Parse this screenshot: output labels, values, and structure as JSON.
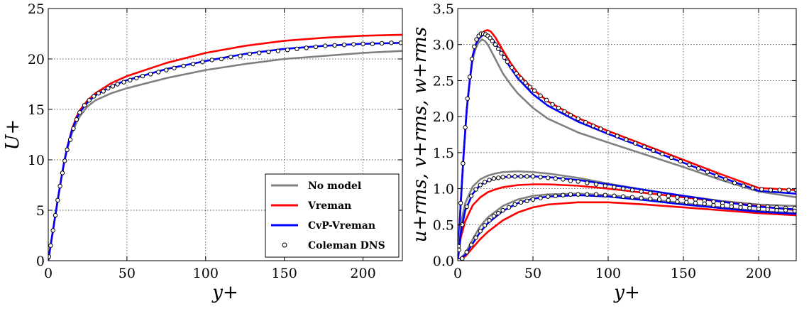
{
  "chart_data": [
    {
      "type": "line",
      "xlabel": "y+",
      "ylabel": "U+",
      "xlim": [
        0,
        225
      ],
      "ylim": [
        0,
        25
      ],
      "xticks": [
        "0",
        "50",
        "100",
        "150",
        "200"
      ],
      "yticks": [
        "0",
        "5",
        "10",
        "15",
        "20",
        "25"
      ],
      "grid": true,
      "legend_position": "lower-right",
      "series": [
        {
          "name": "No model",
          "color": "#808080",
          "style": "line",
          "x": [
            0,
            2,
            4,
            6,
            8,
            10,
            12,
            15,
            18,
            20,
            25,
            30,
            40,
            50,
            75,
            100,
            125,
            150,
            175,
            200,
            225
          ],
          "y": [
            0,
            2,
            4,
            6,
            7.9,
            9.6,
            11,
            12.6,
            13.7,
            14.3,
            15.3,
            15.9,
            16.6,
            17.1,
            18.1,
            18.9,
            19.5,
            20.0,
            20.3,
            20.6,
            20.8
          ]
        },
        {
          "name": "Vreman",
          "color": "#ff0000",
          "style": "line",
          "x": [
            0,
            2,
            4,
            6,
            8,
            10,
            12,
            15,
            18,
            20,
            25,
            30,
            40,
            50,
            75,
            100,
            125,
            150,
            175,
            200,
            225
          ],
          "y": [
            0,
            2,
            4,
            6,
            7.9,
            9.7,
            11.2,
            13.0,
            14.3,
            14.9,
            15.9,
            16.6,
            17.6,
            18.3,
            19.6,
            20.6,
            21.3,
            21.8,
            22.1,
            22.3,
            22.4
          ]
        },
        {
          "name": "CvP-Vreman",
          "color": "#0000ff",
          "style": "line",
          "x": [
            0,
            2,
            4,
            6,
            8,
            10,
            12,
            15,
            18,
            20,
            25,
            30,
            40,
            50,
            75,
            100,
            125,
            150,
            175,
            200,
            225
          ],
          "y": [
            0,
            2,
            4,
            6,
            7.9,
            9.7,
            11.2,
            12.9,
            14.1,
            14.7,
            15.7,
            16.4,
            17.3,
            17.9,
            19.0,
            19.8,
            20.5,
            21.0,
            21.3,
            21.5,
            21.6
          ]
        },
        {
          "name": "Coleman DNS",
          "color": "#000000",
          "style": "markers",
          "x": [
            0.4,
            1.5,
            3,
            4.5,
            6,
            7.5,
            9,
            10.5,
            12,
            14,
            16,
            18,
            20,
            23,
            26,
            29,
            32,
            35,
            38,
            41,
            44,
            48,
            52,
            56,
            60,
            65,
            70,
            75,
            80,
            86,
            92,
            98,
            104,
            110,
            116,
            122,
            128,
            134,
            140,
            146,
            152,
            158,
            164,
            170,
            176,
            182,
            188,
            194,
            200,
            206,
            212,
            218,
            224
          ],
          "y": [
            0.4,
            1.5,
            3,
            4.5,
            6,
            7.4,
            8.7,
            9.9,
            11.0,
            12.0,
            13.1,
            14.0,
            14.7,
            15.4,
            15.9,
            16.3,
            16.6,
            16.8,
            17.1,
            17.3,
            17.5,
            17.7,
            17.9,
            18.1,
            18.3,
            18.5,
            18.7,
            18.9,
            19.1,
            19.3,
            19.5,
            19.7,
            19.9,
            20.0,
            20.2,
            20.3,
            20.5,
            20.6,
            20.7,
            20.8,
            20.9,
            21.0,
            21.1,
            21.2,
            21.3,
            21.35,
            21.4,
            21.45,
            21.5,
            21.5,
            21.55,
            21.6,
            21.6
          ]
        }
      ]
    },
    {
      "type": "line",
      "xlabel": "y+",
      "ylabel": "u+rms, v+rms, w+rms",
      "xlim": [
        0,
        225
      ],
      "ylim": [
        0,
        3.5
      ],
      "xticks": [
        "0",
        "50",
        "100",
        "150",
        "200"
      ],
      "yticks": [
        "0.0",
        "0.5",
        "1.0",
        "1.5",
        "2.0",
        "2.5",
        "3.0",
        "3.5"
      ],
      "grid": true,
      "series": [
        {
          "group": "No model",
          "component": "u",
          "color": "#808080",
          "style": "line",
          "x": [
            0,
            2,
            4,
            6,
            8,
            10,
            12,
            14,
            16,
            18,
            20,
            22,
            25,
            30,
            35,
            40,
            50,
            60,
            80,
            100,
            125,
            150,
            175,
            200,
            225
          ],
          "y": [
            0,
            0.8,
            1.5,
            2.1,
            2.5,
            2.8,
            2.95,
            3.03,
            3.07,
            3.05,
            3.0,
            2.92,
            2.8,
            2.6,
            2.45,
            2.32,
            2.12,
            1.97,
            1.78,
            1.64,
            1.47,
            1.3,
            1.12,
            0.96,
            0.88
          ]
        },
        {
          "group": "Vreman",
          "component": "u",
          "color": "#ff0000",
          "style": "line",
          "x": [
            0,
            2,
            4,
            6,
            8,
            10,
            12,
            14,
            16,
            18,
            20,
            22,
            25,
            30,
            35,
            40,
            50,
            60,
            80,
            100,
            125,
            150,
            175,
            200,
            225
          ],
          "y": [
            0,
            0.8,
            1.5,
            2.1,
            2.5,
            2.85,
            3.0,
            3.1,
            3.15,
            3.19,
            3.2,
            3.18,
            3.1,
            2.92,
            2.75,
            2.6,
            2.38,
            2.21,
            1.98,
            1.8,
            1.6,
            1.4,
            1.2,
            1.01,
            0.98
          ]
        },
        {
          "group": "CvP-Vreman",
          "component": "u",
          "color": "#0000ff",
          "style": "line",
          "x": [
            0,
            2,
            4,
            6,
            8,
            10,
            12,
            14,
            16,
            18,
            20,
            22,
            25,
            30,
            35,
            40,
            50,
            60,
            80,
            100,
            125,
            150,
            175,
            200,
            225
          ],
          "y": [
            0,
            0.8,
            1.5,
            2.1,
            2.5,
            2.85,
            3.0,
            3.08,
            3.12,
            3.14,
            3.14,
            3.1,
            3.02,
            2.85,
            2.68,
            2.53,
            2.31,
            2.15,
            1.93,
            1.76,
            1.56,
            1.36,
            1.16,
            0.97,
            0.93
          ]
        },
        {
          "group": "Coleman DNS",
          "component": "u",
          "color": "#000000",
          "style": "markers",
          "x": [
            0.5,
            2,
            3.5,
            5,
            6.5,
            8,
            9.5,
            11,
            12.5,
            14,
            15.5,
            17,
            18.5,
            20,
            21.5,
            23,
            25,
            27,
            29,
            31,
            33,
            36,
            39,
            42,
            45,
            48,
            51,
            55,
            59,
            63,
            67,
            71,
            75,
            80,
            85,
            90,
            95,
            100,
            106,
            112,
            118,
            124,
            130,
            136,
            142,
            148,
            154,
            160,
            166,
            172,
            178,
            184,
            190,
            196,
            202,
            208,
            214,
            220,
            225
          ],
          "y": [
            0.2,
            0.8,
            1.35,
            1.85,
            2.25,
            2.55,
            2.8,
            2.97,
            3.07,
            3.12,
            3.15,
            3.15,
            3.14,
            3.12,
            3.09,
            3.05,
            3.0,
            2.94,
            2.88,
            2.82,
            2.76,
            2.68,
            2.6,
            2.53,
            2.47,
            2.41,
            2.36,
            2.29,
            2.23,
            2.17,
            2.12,
            2.07,
            2.02,
            1.97,
            1.92,
            1.87,
            1.83,
            1.78,
            1.73,
            1.68,
            1.63,
            1.58,
            1.53,
            1.48,
            1.43,
            1.38,
            1.33,
            1.28,
            1.23,
            1.18,
            1.13,
            1.08,
            1.04,
            1.01,
            0.99,
            0.98,
            0.98,
            0.98,
            0.98
          ]
        },
        {
          "group": "No model",
          "component": "w",
          "color": "#808080",
          "style": "line",
          "x": [
            0,
            2,
            5,
            10,
            15,
            20,
            25,
            30,
            40,
            50,
            60,
            80,
            100,
            125,
            150,
            175,
            200,
            225
          ],
          "y": [
            0,
            0.5,
            0.8,
            1.03,
            1.13,
            1.18,
            1.21,
            1.23,
            1.24,
            1.23,
            1.21,
            1.15,
            1.07,
            0.98,
            0.9,
            0.83,
            0.78,
            0.76
          ]
        },
        {
          "group": "Vreman",
          "component": "w",
          "color": "#ff0000",
          "style": "line",
          "x": [
            0,
            2,
            5,
            10,
            15,
            20,
            25,
            30,
            40,
            50,
            60,
            80,
            100,
            125,
            150,
            175,
            200,
            225
          ],
          "y": [
            0,
            0.32,
            0.55,
            0.77,
            0.88,
            0.95,
            0.99,
            1.02,
            1.05,
            1.06,
            1.06,
            1.04,
            1.0,
            0.94,
            0.88,
            0.82,
            0.76,
            0.7
          ]
        },
        {
          "group": "CvP-Vreman",
          "component": "w",
          "color": "#0000ff",
          "style": "line",
          "x": [
            0,
            2,
            5,
            10,
            15,
            20,
            25,
            30,
            40,
            50,
            60,
            80,
            100,
            125,
            150,
            175,
            200,
            225
          ],
          "y": [
            0,
            0.38,
            0.7,
            0.93,
            1.05,
            1.11,
            1.14,
            1.16,
            1.17,
            1.17,
            1.16,
            1.12,
            1.06,
            0.98,
            0.9,
            0.82,
            0.75,
            0.71
          ]
        },
        {
          "group": "Coleman DNS",
          "component": "w",
          "color": "#000000",
          "style": "markers",
          "x": [
            0.8,
            3,
            6,
            9,
            12,
            15,
            18,
            21,
            24,
            27,
            30,
            34,
            38,
            42,
            46,
            50,
            55,
            60,
            65,
            70,
            75,
            80,
            86,
            92,
            98,
            104,
            110,
            116,
            122,
            128,
            134,
            140,
            146,
            152,
            158,
            164,
            170,
            176,
            182,
            188,
            194,
            200,
            206,
            212,
            218,
            224
          ],
          "y": [
            0.15,
            0.5,
            0.75,
            0.9,
            0.99,
            1.05,
            1.09,
            1.12,
            1.14,
            1.15,
            1.16,
            1.17,
            1.17,
            1.17,
            1.17,
            1.17,
            1.16,
            1.15,
            1.14,
            1.13,
            1.11,
            1.1,
            1.08,
            1.06,
            1.04,
            1.02,
            1.0,
            0.98,
            0.96,
            0.94,
            0.92,
            0.9,
            0.88,
            0.86,
            0.85,
            0.83,
            0.82,
            0.8,
            0.79,
            0.78,
            0.77,
            0.76,
            0.75,
            0.74,
            0.73,
            0.73
          ]
        },
        {
          "group": "No model",
          "component": "v",
          "color": "#808080",
          "style": "line",
          "x": [
            0,
            5,
            10,
            15,
            20,
            30,
            40,
            50,
            60,
            80,
            100,
            125,
            150,
            175,
            200,
            225
          ],
          "y": [
            0,
            0.1,
            0.3,
            0.48,
            0.6,
            0.76,
            0.85,
            0.9,
            0.92,
            0.93,
            0.91,
            0.86,
            0.8,
            0.74,
            0.69,
            0.66
          ]
        },
        {
          "group": "Vreman",
          "component": "v",
          "color": "#ff0000",
          "style": "line",
          "x": [
            0,
            5,
            10,
            15,
            20,
            30,
            40,
            50,
            60,
            80,
            100,
            125,
            150,
            175,
            200,
            225
          ],
          "y": [
            0,
            0.06,
            0.18,
            0.3,
            0.4,
            0.56,
            0.67,
            0.74,
            0.78,
            0.81,
            0.81,
            0.78,
            0.74,
            0.7,
            0.66,
            0.63
          ]
        },
        {
          "group": "CvP-Vreman",
          "component": "v",
          "color": "#0000ff",
          "style": "line",
          "x": [
            0,
            5,
            10,
            15,
            20,
            30,
            40,
            50,
            60,
            80,
            100,
            125,
            150,
            175,
            200,
            225
          ],
          "y": [
            0,
            0.08,
            0.24,
            0.4,
            0.52,
            0.69,
            0.8,
            0.86,
            0.89,
            0.91,
            0.89,
            0.84,
            0.78,
            0.73,
            0.68,
            0.65
          ]
        },
        {
          "group": "Coleman DNS",
          "component": "v",
          "color": "#000000",
          "style": "markers",
          "x": [
            0.8,
            3,
            6,
            9,
            12,
            15,
            18,
            21,
            24,
            27,
            30,
            34,
            38,
            42,
            46,
            50,
            55,
            60,
            65,
            70,
            75,
            80,
            86,
            92,
            98,
            104,
            110,
            116,
            122,
            128,
            134,
            140,
            146,
            152,
            158,
            164,
            170,
            176,
            182,
            188,
            194,
            200,
            206,
            212,
            218,
            224
          ],
          "y": [
            0.0,
            0.03,
            0.12,
            0.22,
            0.32,
            0.41,
            0.49,
            0.56,
            0.62,
            0.66,
            0.7,
            0.74,
            0.78,
            0.81,
            0.83,
            0.85,
            0.87,
            0.89,
            0.9,
            0.91,
            0.92,
            0.92,
            0.92,
            0.92,
            0.91,
            0.9,
            0.89,
            0.88,
            0.87,
            0.86,
            0.85,
            0.84,
            0.82,
            0.81,
            0.8,
            0.79,
            0.77,
            0.76,
            0.75,
            0.74,
            0.73,
            0.72,
            0.71,
            0.7,
            0.7,
            0.69
          ]
        }
      ]
    }
  ]
}
